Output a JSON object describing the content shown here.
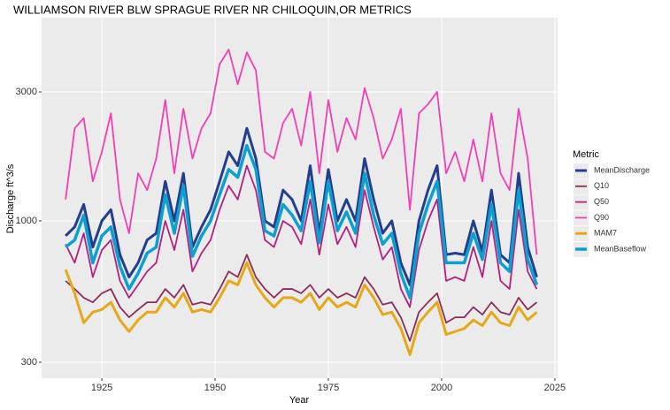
{
  "chart_data": {
    "type": "line",
    "title": "WILLIAMSON RIVER BLW SPRAGUE RIVER NR CHILOQUIN,OR  METRICS",
    "x_label": "Year",
    "y_label": "Discharge ft^3/s",
    "legend_title": "Metric",
    "log_y": true,
    "grid": true,
    "legend": "right",
    "xlim": [
      1911.7,
      2025.6
    ],
    "xticks": [
      1925,
      1950,
      1975,
      2000,
      2025
    ],
    "ylim": [
      262,
      5645
    ],
    "yticks": [
      300,
      1000,
      3000
    ],
    "x": [
      1917,
      1919,
      1921,
      1923,
      1925,
      1927,
      1929,
      1931,
      1933,
      1935,
      1937,
      1939,
      1941,
      1943,
      1945,
      1947,
      1949,
      1951,
      1953,
      1955,
      1957,
      1959,
      1961,
      1963,
      1965,
      1967,
      1969,
      1971,
      1973,
      1975,
      1977,
      1979,
      1981,
      1983,
      1985,
      1987,
      1989,
      1991,
      1993,
      1995,
      1997,
      1999,
      2001,
      2003,
      2005,
      2007,
      2009,
      2011,
      2013,
      2015,
      2017,
      2019,
      2021
    ],
    "series": [
      {
        "name": "MeanDischarge",
        "color": "#233e8b",
        "width": 3,
        "values": [
          880,
          950,
          1150,
          800,
          1000,
          1100,
          750,
          620,
          700,
          850,
          900,
          1400,
          1000,
          1500,
          800,
          950,
          1100,
          1400,
          1800,
          1600,
          2200,
          1700,
          1000,
          950,
          1300,
          1200,
          1000,
          1600,
          900,
          1550,
          1000,
          1200,
          1000,
          1700,
          1200,
          900,
          1000,
          700,
          580,
          1000,
          1300,
          1600,
          750,
          760,
          750,
          1000,
          770,
          1300,
          750,
          700,
          1500,
          800,
          620
        ]
      },
      {
        "name": "Q10",
        "color": "#8b2e5a",
        "width": 1.8,
        "values": [
          600,
          560,
          520,
          500,
          540,
          560,
          480,
          440,
          470,
          500,
          500,
          560,
          520,
          580,
          490,
          500,
          490,
          560,
          650,
          620,
          750,
          620,
          560,
          520,
          560,
          560,
          540,
          580,
          520,
          560,
          520,
          540,
          520,
          620,
          560,
          490,
          500,
          440,
          360,
          460,
          500,
          540,
          420,
          440,
          440,
          480,
          450,
          500,
          460,
          450,
          520,
          470,
          500
        ]
      },
      {
        "name": "Q50",
        "color": "#b5207e",
        "width": 1.8,
        "values": [
          820,
          700,
          900,
          620,
          780,
          850,
          600,
          520,
          580,
          650,
          700,
          1000,
          780,
          1100,
          650,
          760,
          850,
          1100,
          1350,
          1200,
          1600,
          1300,
          850,
          800,
          1000,
          950,
          820,
          1200,
          750,
          1150,
          820,
          950,
          800,
          1300,
          950,
          720,
          800,
          560,
          480,
          780,
          1000,
          1200,
          600,
          620,
          600,
          800,
          620,
          1000,
          600,
          560,
          1100,
          650,
          560
        ]
      },
      {
        "name": "Q90",
        "color": "#f23fb5",
        "width": 1.8,
        "values": [
          1200,
          2200,
          2400,
          1400,
          1800,
          2500,
          1200,
          900,
          1500,
          1300,
          1700,
          2800,
          1500,
          2600,
          1700,
          2200,
          2500,
          3800,
          4300,
          3200,
          4200,
          3600,
          1800,
          1700,
          2300,
          2600,
          1900,
          3000,
          1500,
          2800,
          1800,
          2400,
          2000,
          3100,
          2400,
          1700,
          2000,
          2600,
          1100,
          2500,
          2700,
          3000,
          1500,
          1800,
          1400,
          2000,
          1400,
          2500,
          1500,
          1300,
          2600,
          1700,
          750
        ]
      },
      {
        "name": "MAM7",
        "color": "#e6a817",
        "width": 3,
        "values": [
          660,
          540,
          420,
          460,
          470,
          500,
          430,
          390,
          430,
          460,
          460,
          520,
          480,
          540,
          460,
          470,
          460,
          520,
          600,
          580,
          700,
          580,
          520,
          480,
          520,
          520,
          500,
          540,
          470,
          520,
          480,
          500,
          480,
          580,
          520,
          450,
          460,
          400,
          320,
          420,
          460,
          500,
          380,
          390,
          400,
          430,
          410,
          460,
          420,
          410,
          480,
          430,
          460
        ]
      },
      {
        "name": "MeanBaseflow",
        "color": "#0c9fd0",
        "width": 3.5,
        "values": [
          800,
          850,
          1050,
          700,
          880,
          950,
          680,
          560,
          640,
          760,
          800,
          1250,
          900,
          1350,
          740,
          880,
          1000,
          1250,
          1550,
          1450,
          1900,
          1550,
          920,
          880,
          1150,
          1050,
          920,
          1400,
          830,
          1400,
          920,
          1080,
          900,
          1500,
          1050,
          820,
          900,
          640,
          520,
          900,
          1150,
          1400,
          700,
          700,
          700,
          900,
          720,
          1150,
          700,
          650,
          1300,
          720,
          580
        ]
      }
    ]
  }
}
